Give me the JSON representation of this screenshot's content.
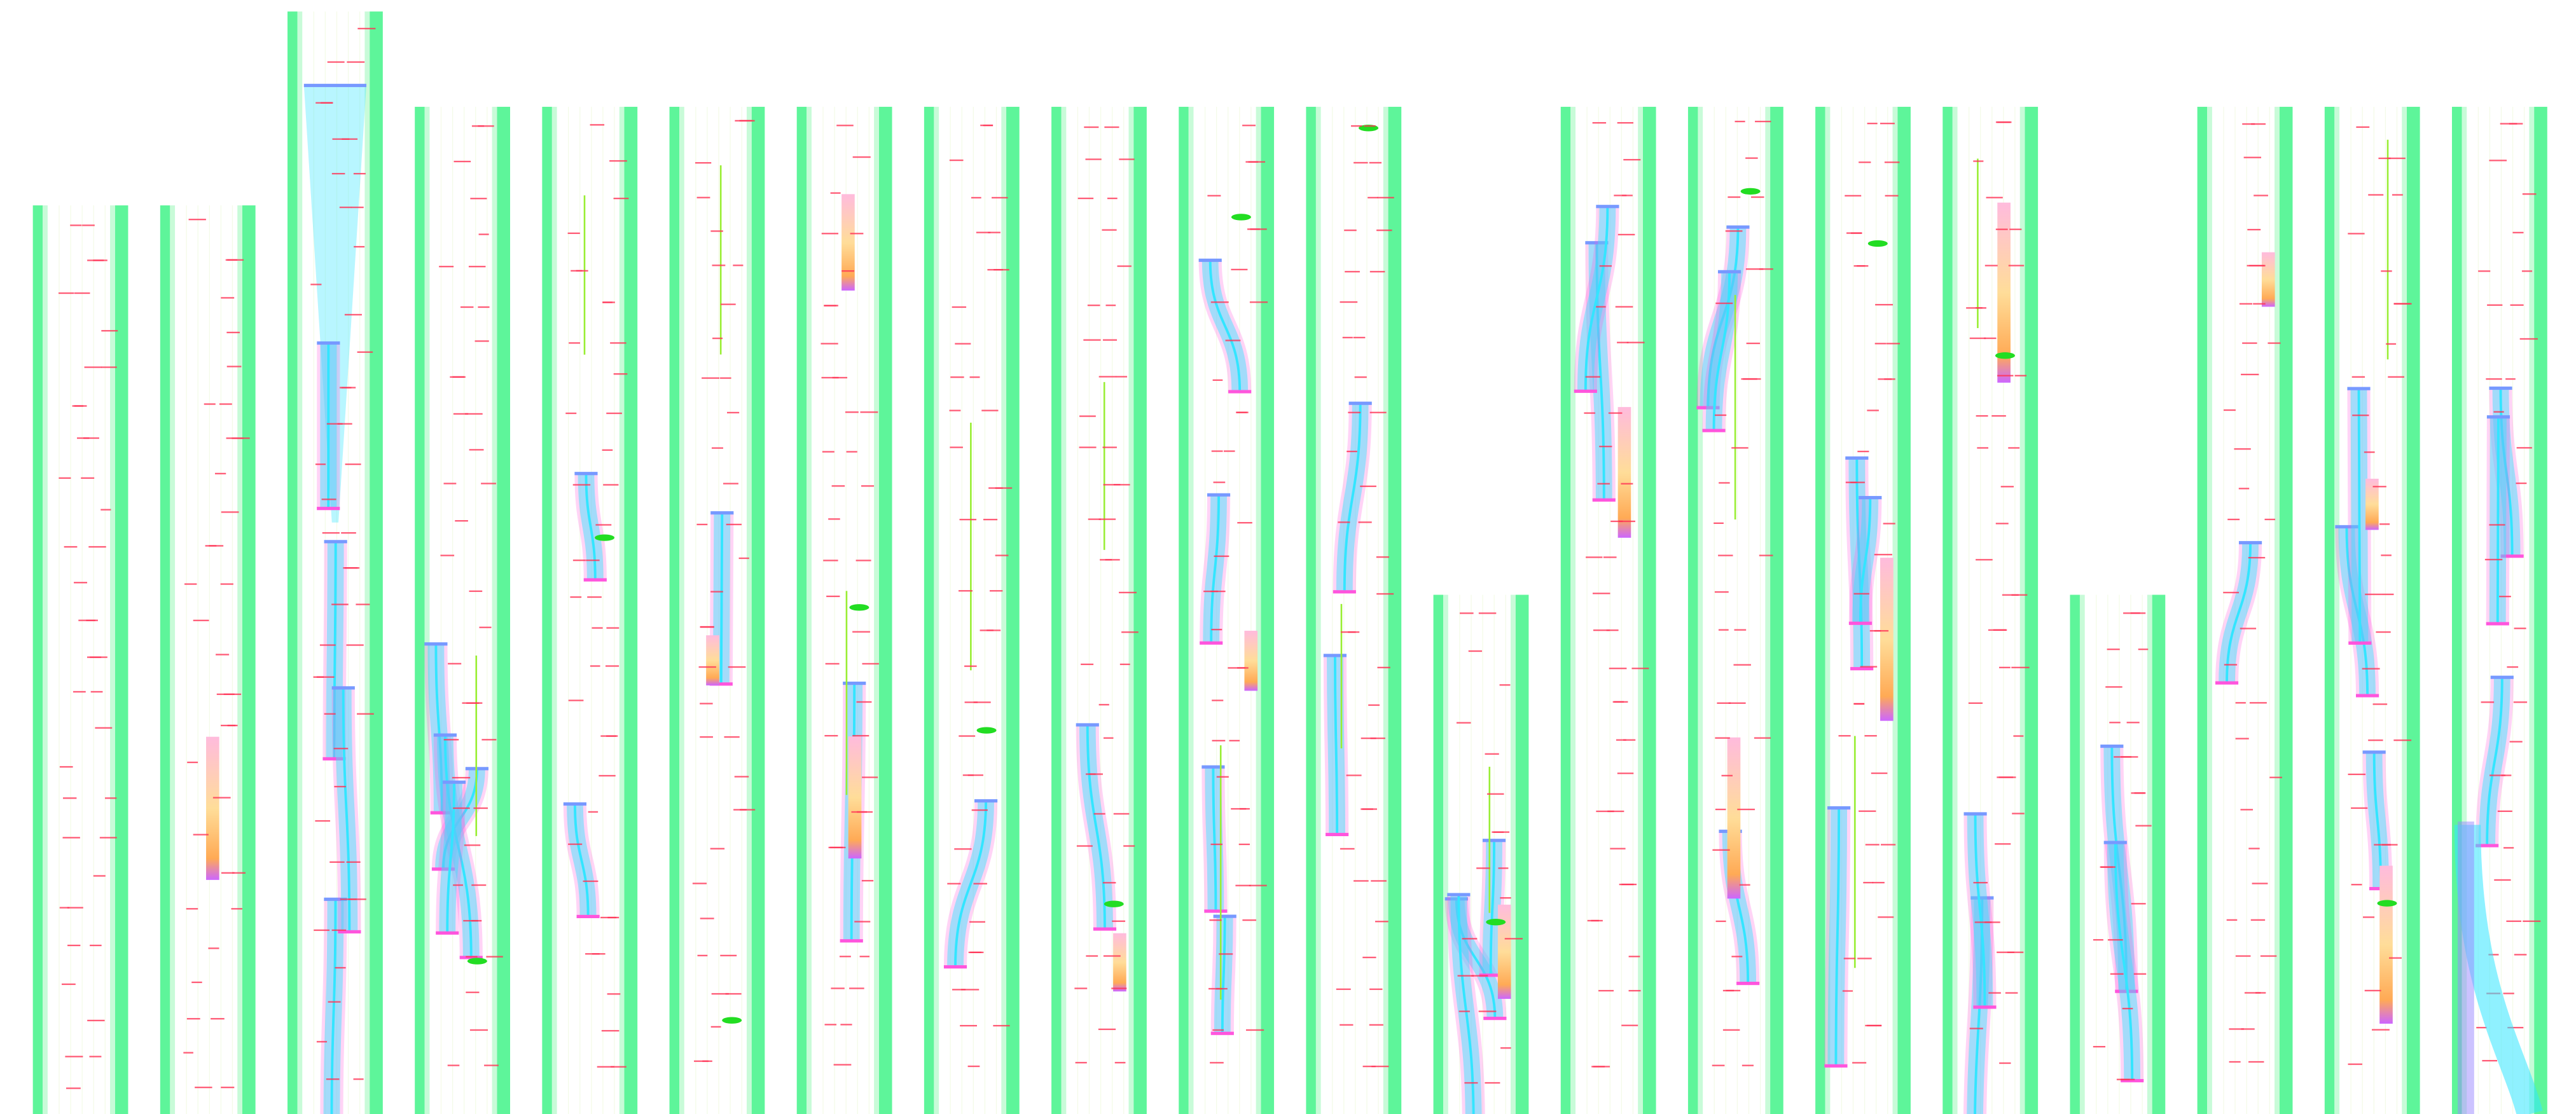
{
  "colors": {
    "background": "#ffffff",
    "column_edge": "#5ef59a",
    "column_edge_light": "#c8fbd8",
    "label_mark": "#ff3355",
    "ribbon": "#33e5ff",
    "ribbon_alt": "#ff55dd",
    "ribbon_edge": "#7799ff",
    "block_fill": "#ffdd99",
    "block_accent": "#cc66ff",
    "connector": "#99ee33",
    "marker": "#22dd22",
    "highlight": "#ffee00"
  },
  "column_count": 20
}
